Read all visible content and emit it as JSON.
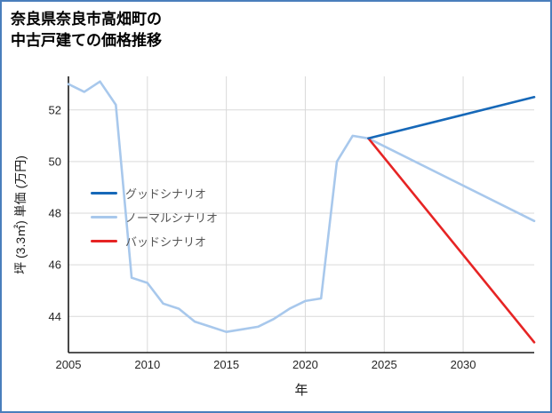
{
  "frame": {
    "border_color": "#4a7ebc",
    "background": "#ffffff"
  },
  "title": {
    "line1": "奈良県奈良市高畑町の",
    "line2": "中古戸建ての価格推移"
  },
  "chart_data": {
    "type": "line",
    "title": "奈良県奈良市高畑町の中古戸建ての価格推移",
    "xlabel": "年",
    "ylabel": "坪 (3.3㎡) 単価 (万円)",
    "xlim": [
      2005,
      2034.5
    ],
    "ylim": [
      42.6,
      53.3
    ],
    "xticks": [
      2005,
      2010,
      2015,
      2020,
      2025,
      2030
    ],
    "yticks": [
      44,
      46,
      48,
      50,
      52
    ],
    "grid": true,
    "grid_color": "#d9d9d9",
    "axis_color": "#1a1a1a",
    "tick_label_color": "#262626",
    "legend_position": "inside-left",
    "series": [
      {
        "key": "history",
        "name": "",
        "in_legend": false,
        "color": "#a8c8ec",
        "x": [
          2005,
          2006,
          2007,
          2008,
          2009,
          2010,
          2011,
          2012,
          2013,
          2014,
          2015,
          2016,
          2017,
          2018,
          2019,
          2020,
          2021,
          2022,
          2023,
          2024
        ],
        "y": [
          53.0,
          52.7,
          53.1,
          52.2,
          45.5,
          45.3,
          44.5,
          44.3,
          43.8,
          43.6,
          43.4,
          43.5,
          43.6,
          43.9,
          44.3,
          44.6,
          44.7,
          50.0,
          51.0,
          50.9
        ]
      },
      {
        "key": "good",
        "name": "グッドシナリオ",
        "in_legend": true,
        "color": "#1668b8",
        "x": [
          2024,
          2034.5
        ],
        "y": [
          50.9,
          52.5
        ]
      },
      {
        "key": "normal",
        "name": "ノーマルシナリオ",
        "in_legend": true,
        "color": "#a8c8ec",
        "x": [
          2024,
          2034.5
        ],
        "y": [
          50.9,
          47.7
        ]
      },
      {
        "key": "bad",
        "name": "バッドシナリオ",
        "in_legend": true,
        "color": "#e62424",
        "x": [
          2024,
          2034.5
        ],
        "y": [
          50.9,
          43.0
        ]
      }
    ]
  }
}
